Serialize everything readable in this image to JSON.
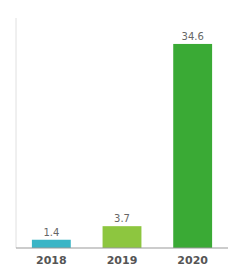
{
  "chart_data": {
    "type": "bar",
    "categories": [
      "2018",
      "2019",
      "2020"
    ],
    "values": [
      1.4,
      3.7,
      34.6
    ],
    "colors": [
      "#3ab5c6",
      "#8dc63f",
      "#3aaa35"
    ],
    "ylim": [
      0,
      39
    ],
    "data_labels": true,
    "tick_labels": "x"
  }
}
